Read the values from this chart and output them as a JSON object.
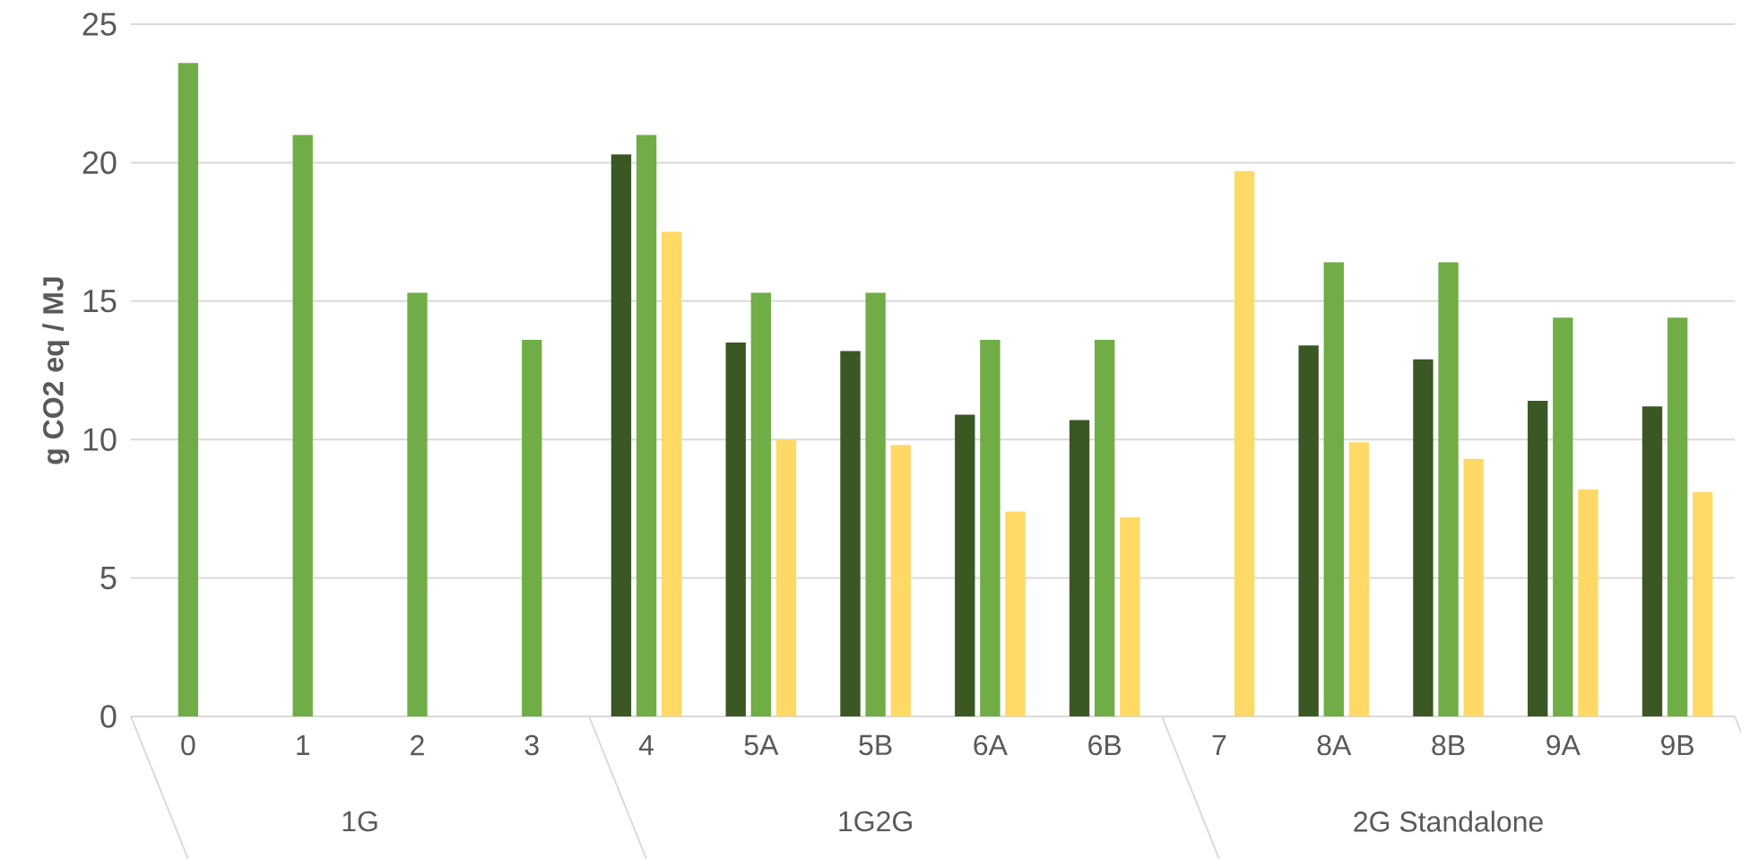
{
  "chart_data": {
    "type": "bar",
    "ylabel": "g CO2 eq / MJ",
    "categories": [
      "0",
      "1",
      "2",
      "3",
      "4",
      "5A",
      "5B",
      "6A",
      "6B",
      "7",
      "8A",
      "8B",
      "9A",
      "9B"
    ],
    "series": [
      {
        "color": "#3b5724",
        "values": [
          null,
          null,
          null,
          null,
          20.3,
          13.5,
          13.2,
          10.9,
          10.7,
          null,
          13.4,
          12.9,
          11.4,
          11.2
        ]
      },
      {
        "color": "#70ad47",
        "values": [
          23.6,
          21.0,
          15.3,
          13.6,
          21.0,
          15.3,
          15.3,
          13.6,
          13.6,
          null,
          16.4,
          16.4,
          14.4,
          14.4
        ]
      },
      {
        "color": "#ffd966",
        "values": [
          null,
          null,
          null,
          null,
          17.5,
          10.0,
          9.8,
          7.4,
          7.2,
          19.7,
          9.9,
          9.3,
          8.2,
          8.1
        ]
      }
    ],
    "annotations": [
      "1G",
      "1G2G",
      "2G Standalone"
    ],
    "ylim": [
      0,
      25
    ],
    "yticks": [
      0,
      5,
      10,
      15,
      20,
      25
    ],
    "grid": "y"
  }
}
